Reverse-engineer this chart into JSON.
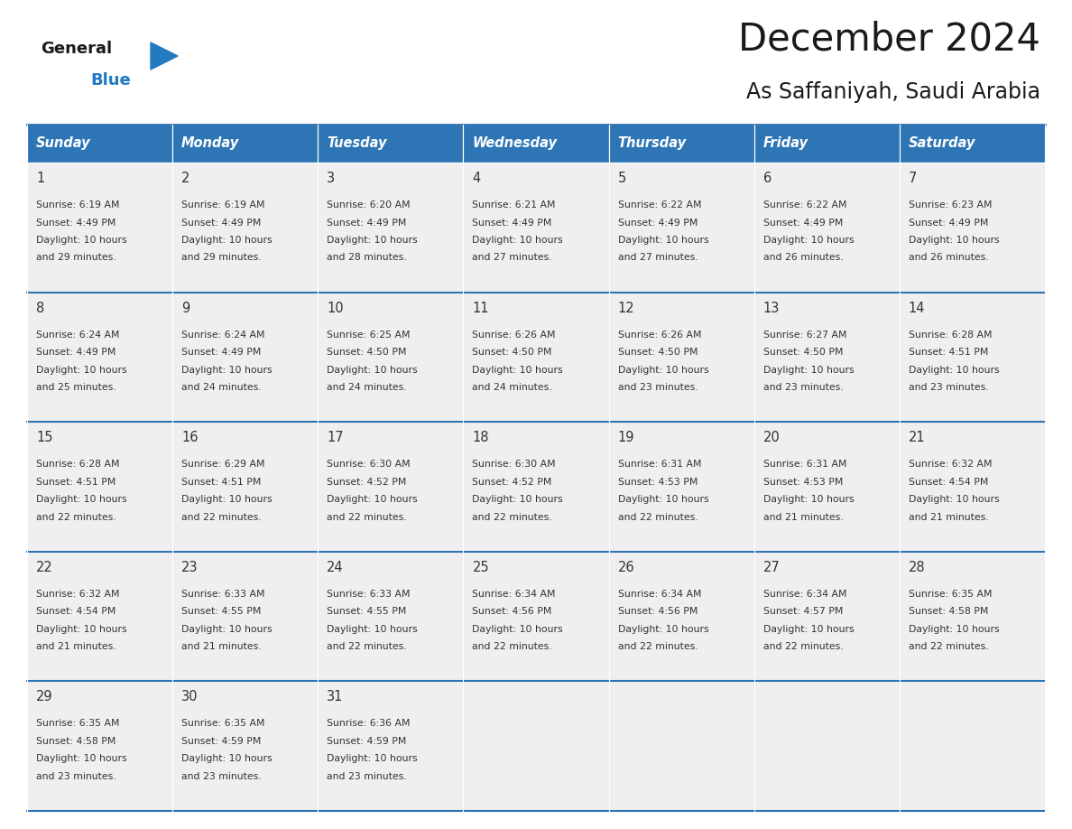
{
  "title": "December 2024",
  "subtitle": "As Saffaniyah, Saudi Arabia",
  "days_of_week": [
    "Sunday",
    "Monday",
    "Tuesday",
    "Wednesday",
    "Thursday",
    "Friday",
    "Saturday"
  ],
  "header_bg": "#2E75B6",
  "header_text": "#FFFFFF",
  "cell_bg_light": "#EFEFEF",
  "text_color": "#333333",
  "line_color": "#2E75B6",
  "title_color": "#1a1a1a",
  "calendar": [
    [
      {
        "day": 1,
        "sunrise": "6:19 AM",
        "sunset": "4:49 PM",
        "daylight_hours": 10,
        "daylight_minutes": 29
      },
      {
        "day": 2,
        "sunrise": "6:19 AM",
        "sunset": "4:49 PM",
        "daylight_hours": 10,
        "daylight_minutes": 29
      },
      {
        "day": 3,
        "sunrise": "6:20 AM",
        "sunset": "4:49 PM",
        "daylight_hours": 10,
        "daylight_minutes": 28
      },
      {
        "day": 4,
        "sunrise": "6:21 AM",
        "sunset": "4:49 PM",
        "daylight_hours": 10,
        "daylight_minutes": 27
      },
      {
        "day": 5,
        "sunrise": "6:22 AM",
        "sunset": "4:49 PM",
        "daylight_hours": 10,
        "daylight_minutes": 27
      },
      {
        "day": 6,
        "sunrise": "6:22 AM",
        "sunset": "4:49 PM",
        "daylight_hours": 10,
        "daylight_minutes": 26
      },
      {
        "day": 7,
        "sunrise": "6:23 AM",
        "sunset": "4:49 PM",
        "daylight_hours": 10,
        "daylight_minutes": 26
      }
    ],
    [
      {
        "day": 8,
        "sunrise": "6:24 AM",
        "sunset": "4:49 PM",
        "daylight_hours": 10,
        "daylight_minutes": 25
      },
      {
        "day": 9,
        "sunrise": "6:24 AM",
        "sunset": "4:49 PM",
        "daylight_hours": 10,
        "daylight_minutes": 24
      },
      {
        "day": 10,
        "sunrise": "6:25 AM",
        "sunset": "4:50 PM",
        "daylight_hours": 10,
        "daylight_minutes": 24
      },
      {
        "day": 11,
        "sunrise": "6:26 AM",
        "sunset": "4:50 PM",
        "daylight_hours": 10,
        "daylight_minutes": 24
      },
      {
        "day": 12,
        "sunrise": "6:26 AM",
        "sunset": "4:50 PM",
        "daylight_hours": 10,
        "daylight_minutes": 23
      },
      {
        "day": 13,
        "sunrise": "6:27 AM",
        "sunset": "4:50 PM",
        "daylight_hours": 10,
        "daylight_minutes": 23
      },
      {
        "day": 14,
        "sunrise": "6:28 AM",
        "sunset": "4:51 PM",
        "daylight_hours": 10,
        "daylight_minutes": 23
      }
    ],
    [
      {
        "day": 15,
        "sunrise": "6:28 AM",
        "sunset": "4:51 PM",
        "daylight_hours": 10,
        "daylight_minutes": 22
      },
      {
        "day": 16,
        "sunrise": "6:29 AM",
        "sunset": "4:51 PM",
        "daylight_hours": 10,
        "daylight_minutes": 22
      },
      {
        "day": 17,
        "sunrise": "6:30 AM",
        "sunset": "4:52 PM",
        "daylight_hours": 10,
        "daylight_minutes": 22
      },
      {
        "day": 18,
        "sunrise": "6:30 AM",
        "sunset": "4:52 PM",
        "daylight_hours": 10,
        "daylight_minutes": 22
      },
      {
        "day": 19,
        "sunrise": "6:31 AM",
        "sunset": "4:53 PM",
        "daylight_hours": 10,
        "daylight_minutes": 22
      },
      {
        "day": 20,
        "sunrise": "6:31 AM",
        "sunset": "4:53 PM",
        "daylight_hours": 10,
        "daylight_minutes": 21
      },
      {
        "day": 21,
        "sunrise": "6:32 AM",
        "sunset": "4:54 PM",
        "daylight_hours": 10,
        "daylight_minutes": 21
      }
    ],
    [
      {
        "day": 22,
        "sunrise": "6:32 AM",
        "sunset": "4:54 PM",
        "daylight_hours": 10,
        "daylight_minutes": 21
      },
      {
        "day": 23,
        "sunrise": "6:33 AM",
        "sunset": "4:55 PM",
        "daylight_hours": 10,
        "daylight_minutes": 21
      },
      {
        "day": 24,
        "sunrise": "6:33 AM",
        "sunset": "4:55 PM",
        "daylight_hours": 10,
        "daylight_minutes": 22
      },
      {
        "day": 25,
        "sunrise": "6:34 AM",
        "sunset": "4:56 PM",
        "daylight_hours": 10,
        "daylight_minutes": 22
      },
      {
        "day": 26,
        "sunrise": "6:34 AM",
        "sunset": "4:56 PM",
        "daylight_hours": 10,
        "daylight_minutes": 22
      },
      {
        "day": 27,
        "sunrise": "6:34 AM",
        "sunset": "4:57 PM",
        "daylight_hours": 10,
        "daylight_minutes": 22
      },
      {
        "day": 28,
        "sunrise": "6:35 AM",
        "sunset": "4:58 PM",
        "daylight_hours": 10,
        "daylight_minutes": 22
      }
    ],
    [
      {
        "day": 29,
        "sunrise": "6:35 AM",
        "sunset": "4:58 PM",
        "daylight_hours": 10,
        "daylight_minutes": 23
      },
      {
        "day": 30,
        "sunrise": "6:35 AM",
        "sunset": "4:59 PM",
        "daylight_hours": 10,
        "daylight_minutes": 23
      },
      {
        "day": 31,
        "sunrise": "6:36 AM",
        "sunset": "4:59 PM",
        "daylight_hours": 10,
        "daylight_minutes": 23
      },
      null,
      null,
      null,
      null
    ]
  ],
  "logo_general_color": "#1a1a1a",
  "logo_blue_color": "#2479C0"
}
